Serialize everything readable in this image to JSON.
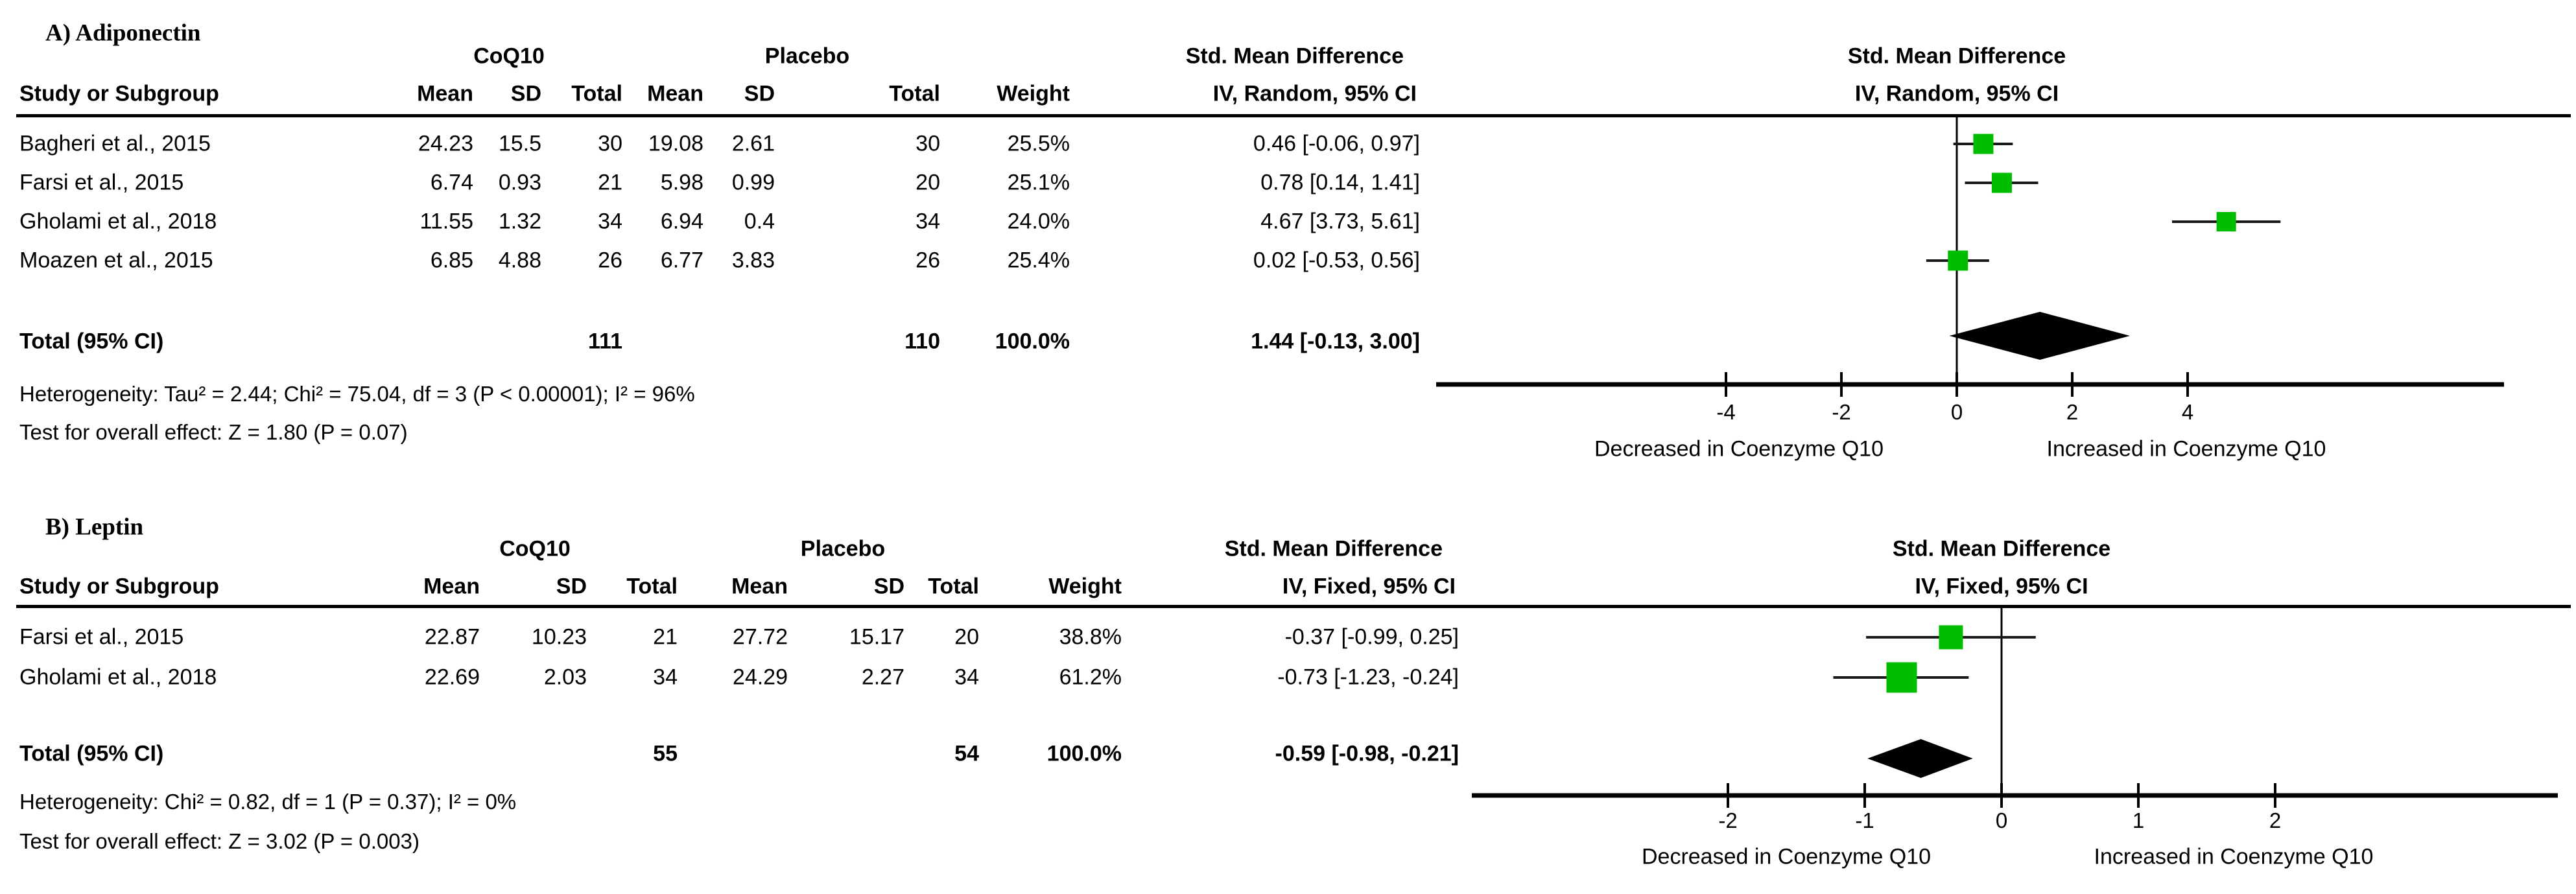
{
  "figure_title": "Forest plots: CoQ10 vs Placebo, Std. Mean Difference",
  "colors": {
    "marker_green": "#00bd00",
    "diamond_black": "#000000",
    "line_black": "#000000"
  },
  "chart_data": [
    {
      "type": "forest",
      "panel_id": "A",
      "title": "A) Adiponectin",
      "group1_label": "CoQ10",
      "group2_label": "Placebo",
      "table_headers": {
        "study": "Study or Subgroup",
        "mean": "Mean",
        "sd": "SD",
        "total": "Total",
        "weight": "Weight"
      },
      "effect_label": "Std. Mean Difference",
      "method_label": "IV, Random, 95% CI",
      "studies": [
        {
          "name": "Bagheri et al., 2015",
          "mean1": "24.23",
          "sd1": "15.5",
          "total1": "30",
          "mean2": "19.08",
          "sd2": "2.61",
          "total2": "30",
          "weight": "25.5%",
          "ci_text": "0.46 [-0.06, 0.97]",
          "est": 0.46,
          "lo": -0.06,
          "hi": 0.97,
          "weight_value": 25.5
        },
        {
          "name": "Farsi et al., 2015",
          "mean1": "6.74",
          "sd1": "0.93",
          "total1": "21",
          "mean2": "5.98",
          "sd2": "0.99",
          "total2": "20",
          "weight": "25.1%",
          "ci_text": "0.78 [0.14, 1.41]",
          "est": 0.78,
          "lo": 0.14,
          "hi": 1.41,
          "weight_value": 25.1
        },
        {
          "name": "Gholami et al., 2018",
          "mean1": "11.55",
          "sd1": "1.32",
          "total1": "34",
          "mean2": "6.94",
          "sd2": "0.4",
          "total2": "34",
          "weight": "24.0%",
          "ci_text": "4.67 [3.73, 5.61]",
          "est": 4.67,
          "lo": 3.73,
          "hi": 5.61,
          "weight_value": 24.0
        },
        {
          "name": "Moazen et al., 2015",
          "mean1": "6.85",
          "sd1": "4.88",
          "total1": "26",
          "mean2": "6.77",
          "sd2": "3.83",
          "total2": "26",
          "weight": "25.4%",
          "ci_text": "0.02 [-0.53, 0.56]",
          "est": 0.02,
          "lo": -0.53,
          "hi": 0.56,
          "weight_value": 25.4
        }
      ],
      "total": {
        "label": "Total (95% CI)",
        "total1": "111",
        "total2": "110",
        "weight": "100.0%",
        "ci_text": "1.44 [-0.13, 3.00]",
        "est": 1.44,
        "lo": -0.13,
        "hi": 3.0
      },
      "heterogeneity_text": "Heterogeneity: Tau² = 2.44; Chi² = 75.04, df = 3 (P < 0.00001); I² = 96%",
      "overall_effect_text": "Test for overall effect: Z = 1.80 (P = 0.07)",
      "axis_ticks": [
        -4,
        -2,
        0,
        2,
        4
      ],
      "xlim": [
        -9,
        9.5
      ],
      "xlabel_left": "Decreased in Coenzyme Q10",
      "xlabel_right": "Increased in Coenzyme Q10"
    },
    {
      "type": "forest",
      "panel_id": "B",
      "title": "B) Leptin",
      "group1_label": "CoQ10",
      "group2_label": "Placebo",
      "table_headers": {
        "study": "Study or Subgroup",
        "mean": "Mean",
        "sd": "SD",
        "total": "Total",
        "weight": "Weight"
      },
      "effect_label": "Std. Mean Difference",
      "method_label": "IV, Fixed, 95% CI",
      "studies": [
        {
          "name": "Farsi et al., 2015",
          "mean1": "22.87",
          "sd1": "10.23",
          "total1": "21",
          "mean2": "27.72",
          "sd2": "15.17",
          "total2": "20",
          "weight": "38.8%",
          "ci_text": "-0.37 [-0.99, 0.25]",
          "est": -0.37,
          "lo": -0.99,
          "hi": 0.25,
          "weight_value": 38.8
        },
        {
          "name": "Gholami et al., 2018",
          "mean1": "22.69",
          "sd1": "2.03",
          "total1": "34",
          "mean2": "24.29",
          "sd2": "2.27",
          "total2": "34",
          "weight": "61.2%",
          "ci_text": "-0.73 [-1.23, -0.24]",
          "est": -0.73,
          "lo": -1.23,
          "hi": -0.24,
          "weight_value": 61.2
        }
      ],
      "total": {
        "label": "Total (95% CI)",
        "total1": "55",
        "total2": "54",
        "weight": "100.0%",
        "ci_text": "-0.59 [-0.98, -0.21]",
        "est": -0.59,
        "lo": -0.98,
        "hi": -0.21
      },
      "heterogeneity_text": "Heterogeneity: Chi² = 0.82, df = 1 (P = 0.37); I² = 0%",
      "overall_effect_text": "Test for overall effect: Z = 3.02 (P = 0.003)",
      "axis_ticks": [
        -2,
        -1,
        0,
        1,
        2
      ],
      "xlim": [
        -3.9,
        4.1
      ],
      "xlabel_left": "Decreased in Coenzyme Q10",
      "xlabel_right": "Increased in Coenzyme Q10"
    }
  ]
}
